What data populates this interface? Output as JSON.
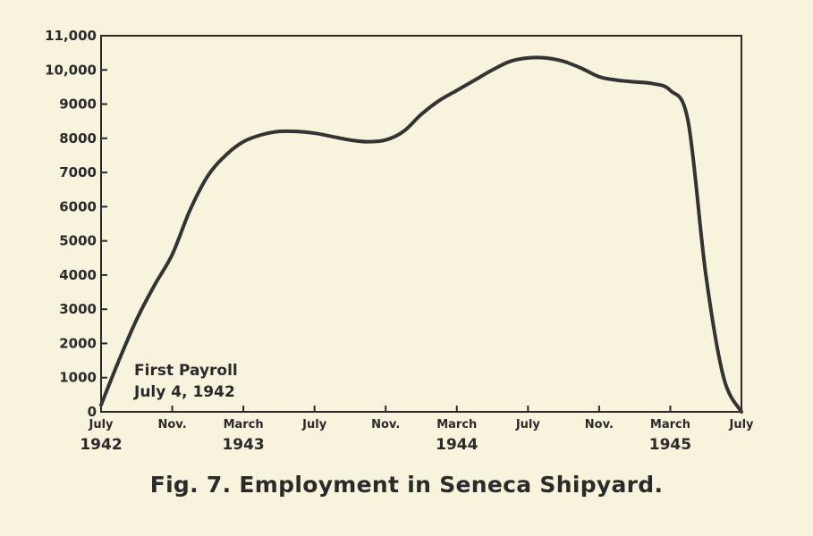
{
  "figure": {
    "caption": "Fig. 7. Employment in Seneca Shipyard."
  },
  "chart_data": {
    "type": "line",
    "title": "",
    "xlabel": "",
    "ylabel": "",
    "ylim": [
      0,
      11000
    ],
    "yticks": [
      0,
      1000,
      2000,
      3000,
      4000,
      5000,
      6000,
      7000,
      8000,
      9000,
      10000,
      11000
    ],
    "ytick_labels": [
      "0",
      "1000",
      "2000",
      "3000",
      "4000",
      "5000",
      "6000",
      "7000",
      "8000",
      "9000",
      "10,000",
      "11,000"
    ],
    "xticks": [
      {
        "month": "1942-07",
        "label": "July",
        "year": "1942"
      },
      {
        "month": "1942-11",
        "label": "Nov.",
        "year": ""
      },
      {
        "month": "1943-03",
        "label": "March",
        "year": "1943"
      },
      {
        "month": "1943-07",
        "label": "July",
        "year": ""
      },
      {
        "month": "1943-11",
        "label": "Nov.",
        "year": ""
      },
      {
        "month": "1944-03",
        "label": "March",
        "year": "1944"
      },
      {
        "month": "1944-07",
        "label": "July",
        "year": ""
      },
      {
        "month": "1944-11",
        "label": "Nov.",
        "year": ""
      },
      {
        "month": "1945-03",
        "label": "March",
        "year": "1945"
      },
      {
        "month": "1945-07",
        "label": "July",
        "year": ""
      }
    ],
    "series": [
      {
        "points": [
          {
            "x": "1942-07",
            "y": 200
          },
          {
            "x": "1942-08",
            "y": 1500
          },
          {
            "x": "1942-09",
            "y": 2700
          },
          {
            "x": "1942-10",
            "y": 3700
          },
          {
            "x": "1942-11",
            "y": 4600
          },
          {
            "x": "1942-12",
            "y": 5900
          },
          {
            "x": "1943-01",
            "y": 6900
          },
          {
            "x": "1943-02",
            "y": 7500
          },
          {
            "x": "1943-03",
            "y": 7900
          },
          {
            "x": "1943-04",
            "y": 8100
          },
          {
            "x": "1943-05",
            "y": 8200
          },
          {
            "x": "1943-06",
            "y": 8200
          },
          {
            "x": "1943-07",
            "y": 8150
          },
          {
            "x": "1943-08",
            "y": 8050
          },
          {
            "x": "1943-09",
            "y": 7950
          },
          {
            "x": "1943-10",
            "y": 7900
          },
          {
            "x": "1943-11",
            "y": 7950
          },
          {
            "x": "1943-12",
            "y": 8200
          },
          {
            "x": "1944-01",
            "y": 8700
          },
          {
            "x": "1944-02",
            "y": 9100
          },
          {
            "x": "1944-03",
            "y": 9400
          },
          {
            "x": "1944-04",
            "y": 9700
          },
          {
            "x": "1944-05",
            "y": 10000
          },
          {
            "x": "1944-06",
            "y": 10250
          },
          {
            "x": "1944-07",
            "y": 10350
          },
          {
            "x": "1944-08",
            "y": 10350
          },
          {
            "x": "1944-09",
            "y": 10250
          },
          {
            "x": "1944-10",
            "y": 10050
          },
          {
            "x": "1944-11",
            "y": 9800
          },
          {
            "x": "1944-12",
            "y": 9700
          },
          {
            "x": "1945-01",
            "y": 9650
          },
          {
            "x": "1945-02",
            "y": 9600
          },
          {
            "x": "1945-03",
            "y": 9400
          },
          {
            "x": "1945-04",
            "y": 8500
          },
          {
            "x": "1945-05",
            "y": 4000
          },
          {
            "x": "1945-06",
            "y": 1000
          },
          {
            "x": "1945-07",
            "y": 0
          }
        ]
      }
    ],
    "annotations": [
      {
        "line1": "First Payroll",
        "line2": "July 4, 1942",
        "at_month": "1942-07"
      }
    ],
    "grid": false,
    "legend": "none"
  }
}
